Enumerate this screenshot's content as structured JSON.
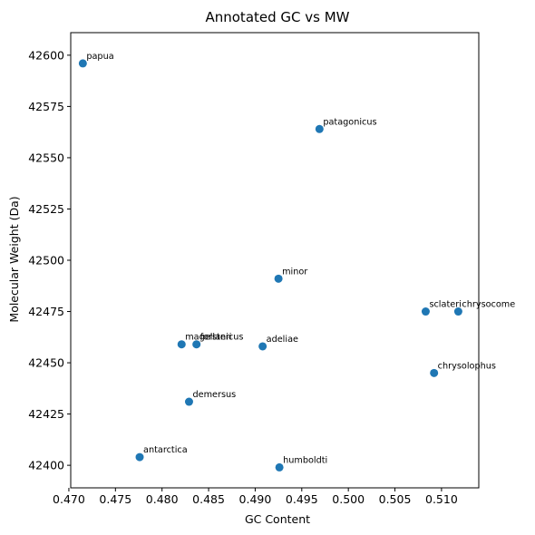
{
  "chart_data": {
    "type": "scatter",
    "title": "Annotated GC vs MW",
    "xlabel": "GC Content",
    "ylabel": "Molecular Weight (Da)",
    "xlim": [
      0.4702,
      0.514
    ],
    "ylim": [
      42389,
      42611
    ],
    "x_ticks": [
      0.47,
      0.475,
      0.48,
      0.485,
      0.49,
      0.495,
      0.5,
      0.505,
      0.51
    ],
    "x_tick_labels": [
      "0.470",
      "0.475",
      "0.480",
      "0.485",
      "0.490",
      "0.495",
      "0.500",
      "0.505",
      "0.510"
    ],
    "y_ticks": [
      42400,
      42425,
      42450,
      42475,
      42500,
      42525,
      42550,
      42575,
      42600
    ],
    "y_tick_labels": [
      "42400",
      "42425",
      "42450",
      "42475",
      "42500",
      "42525",
      "42550",
      "42575",
      "42600"
    ],
    "grid": false,
    "marker_color": "#1f77b4",
    "points": [
      {
        "label": "papua",
        "x": 0.4715,
        "y": 42596
      },
      {
        "label": "patagonicus",
        "x": 0.4969,
        "y": 42564
      },
      {
        "label": "minor",
        "x": 0.4925,
        "y": 42491
      },
      {
        "label": "sclateri",
        "x": 0.5083,
        "y": 42475
      },
      {
        "label": "chrysocome",
        "x": 0.5118,
        "y": 42475
      },
      {
        "label": "magellanicus",
        "x": 0.4821,
        "y": 42459
      },
      {
        "label": "forsteri",
        "x": 0.4837,
        "y": 42459
      },
      {
        "label": "adeliae",
        "x": 0.4908,
        "y": 42458
      },
      {
        "label": "chrysolophus",
        "x": 0.5092,
        "y": 42445
      },
      {
        "label": "demersus",
        "x": 0.4829,
        "y": 42431
      },
      {
        "label": "antarctica",
        "x": 0.4776,
        "y": 42404
      },
      {
        "label": "humboldti",
        "x": 0.4926,
        "y": 42399
      }
    ]
  }
}
